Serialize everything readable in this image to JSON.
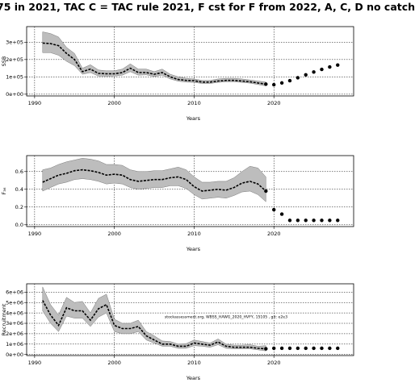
{
  "title": "75 in 2021, TAC C = TAC rule 2021, F cst for F from 2022, A, C, D no catch",
  "chart_data": [
    {
      "type": "line",
      "ylabel": "SSB",
      "xlabel": "Years",
      "xlim": [
        1989,
        2030
      ],
      "ylim": [
        -10000,
        390000
      ],
      "xticks": [
        1990,
        2000,
        2010,
        2020
      ],
      "yticks": [
        0,
        100000,
        200000,
        300000
      ],
      "ytick_labels": [
        "0e+00",
        "1e+05",
        "2e+05",
        "3e+05"
      ],
      "grid": true,
      "series": [
        {
          "kind": "historical",
          "x": [
            1991,
            1992,
            1993,
            1994,
            1995,
            1996,
            1997,
            1998,
            1999,
            2000,
            2001,
            2002,
            2003,
            2004,
            2005,
            2006,
            2007,
            2008,
            2009,
            2010,
            2011,
            2012,
            2013,
            2014,
            2015,
            2016,
            2017,
            2018,
            2019
          ],
          "values": [
            295000,
            292000,
            280000,
            235000,
            200000,
            130000,
            145000,
            120000,
            118000,
            118000,
            125000,
            150000,
            125000,
            125000,
            115000,
            125000,
            100000,
            85000,
            80000,
            78000,
            70000,
            70000,
            76000,
            80000,
            80000,
            76000,
            72000,
            65000,
            58000
          ],
          "lower": [
            240000,
            240000,
            225000,
            190000,
            165000,
            115000,
            125000,
            105000,
            104000,
            105000,
            110000,
            130000,
            110000,
            112000,
            102000,
            110000,
            88000,
            75000,
            70000,
            68000,
            62000,
            62000,
            68000,
            72000,
            72000,
            68000,
            64000,
            56000,
            48000
          ],
          "upper": [
            360000,
            350000,
            330000,
            270000,
            235000,
            150000,
            170000,
            140000,
            135000,
            135000,
            145000,
            175000,
            145000,
            145000,
            130000,
            145000,
            115000,
            100000,
            92000,
            88000,
            80000,
            80000,
            88000,
            92000,
            92000,
            88000,
            82000,
            76000,
            70000
          ]
        },
        {
          "kind": "projection",
          "x": [
            2020,
            2021,
            2022,
            2023,
            2024,
            2025,
            2026,
            2027,
            2028
          ],
          "values": [
            55000,
            65000,
            78000,
            95000,
            112000,
            128000,
            143000,
            157000,
            168000
          ]
        }
      ]
    },
    {
      "type": "line",
      "ylabel": "F₃₆",
      "xlabel": "Years",
      "xlim": [
        1989,
        2030
      ],
      "ylim": [
        -0.02,
        0.78
      ],
      "xticks": [
        1990,
        2000,
        2010,
        2020
      ],
      "yticks": [
        0,
        0.2,
        0.4,
        0.6
      ],
      "ytick_labels": [
        "0.0",
        "0.2",
        "0.4",
        "0.6"
      ],
      "grid": true,
      "series": [
        {
          "kind": "historical",
          "x": [
            1991,
            1992,
            1993,
            1994,
            1995,
            1996,
            1997,
            1998,
            1999,
            2000,
            2001,
            2002,
            2003,
            2004,
            2005,
            2006,
            2007,
            2008,
            2009,
            2010,
            2011,
            2012,
            2013,
            2014,
            2015,
            2016,
            2017,
            2018,
            2019
          ],
          "values": [
            0.48,
            0.52,
            0.56,
            0.58,
            0.61,
            0.62,
            0.61,
            0.59,
            0.56,
            0.57,
            0.56,
            0.51,
            0.49,
            0.5,
            0.51,
            0.51,
            0.53,
            0.54,
            0.51,
            0.43,
            0.38,
            0.39,
            0.4,
            0.39,
            0.42,
            0.47,
            0.49,
            0.46,
            0.38
          ],
          "lower": [
            0.38,
            0.42,
            0.46,
            0.48,
            0.51,
            0.52,
            0.51,
            0.49,
            0.46,
            0.47,
            0.46,
            0.42,
            0.4,
            0.41,
            0.42,
            0.42,
            0.44,
            0.44,
            0.41,
            0.34,
            0.29,
            0.3,
            0.31,
            0.3,
            0.33,
            0.37,
            0.38,
            0.34,
            0.26
          ],
          "upper": [
            0.62,
            0.64,
            0.68,
            0.71,
            0.73,
            0.75,
            0.74,
            0.72,
            0.68,
            0.68,
            0.67,
            0.62,
            0.6,
            0.6,
            0.61,
            0.61,
            0.63,
            0.65,
            0.62,
            0.54,
            0.48,
            0.48,
            0.49,
            0.49,
            0.53,
            0.6,
            0.66,
            0.64,
            0.54
          ]
        },
        {
          "kind": "projection",
          "x": [
            2020,
            2021,
            2022,
            2023,
            2024,
            2025,
            2026,
            2027,
            2028
          ],
          "values": [
            0.17,
            0.12,
            0.05,
            0.05,
            0.05,
            0.05,
            0.05,
            0.05,
            0.05
          ]
        }
      ]
    },
    {
      "type": "line",
      "ylabel": "Recruitment",
      "xlabel": "Years",
      "xlim": [
        1989,
        2030
      ],
      "ylim": [
        -100000,
        6800000
      ],
      "xticks": [
        1990,
        2000,
        2010,
        2020
      ],
      "yticks": [
        0,
        1000000,
        2000000,
        3000000,
        4000000,
        5000000,
        6000000
      ],
      "ytick_labels": [
        "0e+00",
        "1e+06",
        "2e+06",
        "3e+06",
        "4e+06",
        "5e+06",
        "6e+06"
      ],
      "grid": true,
      "annotation": "stockassessment.org, WBSS_HAWG_2020_HVFY, 15105 , git: e2e3",
      "series": [
        {
          "kind": "historical",
          "x": [
            1991,
            1992,
            1993,
            1994,
            1995,
            1996,
            1997,
            1998,
            1999,
            2000,
            2001,
            2002,
            2003,
            2004,
            2005,
            2006,
            2007,
            2008,
            2009,
            2010,
            2011,
            2012,
            2013,
            2014,
            2015,
            2016,
            2017,
            2018,
            2019
          ],
          "values": [
            5200000,
            3800000,
            2800000,
            4500000,
            4200000,
            4200000,
            3300000,
            4400000,
            4800000,
            2800000,
            2500000,
            2500000,
            2700000,
            1800000,
            1400000,
            1000000,
            1000000,
            800000,
            800000,
            1100000,
            1000000,
            900000,
            1200000,
            800000,
            700000,
            700000,
            700000,
            600000,
            550000
          ],
          "lower": [
            4200000,
            3000000,
            2200000,
            3700000,
            3500000,
            3500000,
            2700000,
            3600000,
            4000000,
            2200000,
            2000000,
            2000000,
            2200000,
            1400000,
            1100000,
            800000,
            800000,
            600000,
            600000,
            850000,
            800000,
            700000,
            950000,
            600000,
            550000,
            550000,
            550000,
            450000,
            350000
          ],
          "upper": [
            6500000,
            4800000,
            3800000,
            5500000,
            5000000,
            5100000,
            4000000,
            5400000,
            5800000,
            3400000,
            3000000,
            3000000,
            3300000,
            2200000,
            1800000,
            1300000,
            1250000,
            1000000,
            1050000,
            1400000,
            1250000,
            1100000,
            1500000,
            1000000,
            900000,
            900000,
            950000,
            800000,
            850000
          ]
        },
        {
          "kind": "projection",
          "x": [
            2020,
            2021,
            2022,
            2023,
            2024,
            2025,
            2026,
            2027,
            2028
          ],
          "values": [
            600000,
            600000,
            600000,
            600000,
            600000,
            600000,
            600000,
            600000,
            600000
          ]
        }
      ]
    }
  ]
}
